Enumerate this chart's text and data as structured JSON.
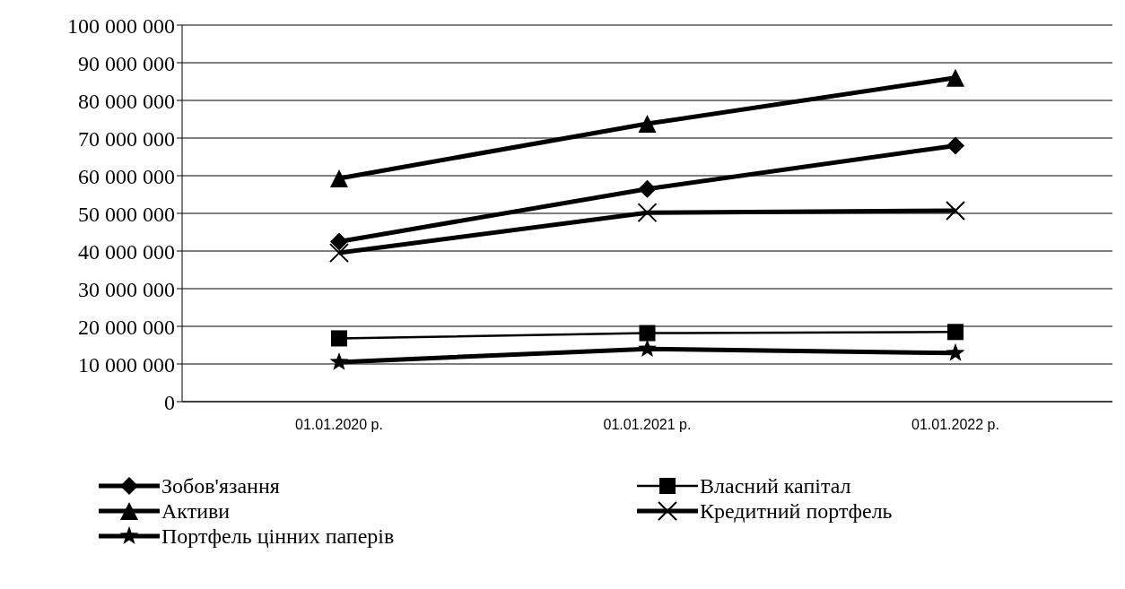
{
  "chart_data": {
    "type": "line",
    "categories": [
      "01.01.2020 р.",
      "01.01.2021 р.",
      "01.01.2022 р."
    ],
    "series": [
      {
        "name": "Зобов'язання",
        "color": "#000000",
        "marker": "diamond",
        "values": [
          42500000,
          56500000,
          68000000
        ]
      },
      {
        "name": "Власний капітал",
        "color": "#000000",
        "marker": "square",
        "values": [
          16800000,
          18200000,
          18500000
        ]
      },
      {
        "name": "Активи",
        "color": "#000000",
        "marker": "triangle",
        "values": [
          59300000,
          73800000,
          86000000
        ]
      },
      {
        "name": "Кредитний портфель",
        "color": "#000000",
        "marker": "cross",
        "values": [
          39500000,
          50200000,
          50700000
        ]
      },
      {
        "name": "Портфель цінних паперів",
        "color": "#000000",
        "marker": "star",
        "values": [
          10500000,
          14000000,
          12900000
        ]
      }
    ],
    "ylim": [
      0,
      100000000
    ],
    "yticks": [
      {
        "value": 0,
        "label": "0"
      },
      {
        "value": 10000000,
        "label": "10 000 000"
      },
      {
        "value": 20000000,
        "label": "20 000 000"
      },
      {
        "value": 30000000,
        "label": "30 000 000"
      },
      {
        "value": 40000000,
        "label": "40 000 000"
      },
      {
        "value": 50000000,
        "label": "50 000 000"
      },
      {
        "value": 60000000,
        "label": "60 000 000"
      },
      {
        "value": 70000000,
        "label": "70 000 000"
      },
      {
        "value": 80000000,
        "label": "80 000 000"
      },
      {
        "value": 90000000,
        "label": "90 000 000"
      },
      {
        "value": 100000000,
        "label": "100 000 000"
      }
    ],
    "grid": "y",
    "legend": "bottom",
    "line_style": "solid"
  }
}
